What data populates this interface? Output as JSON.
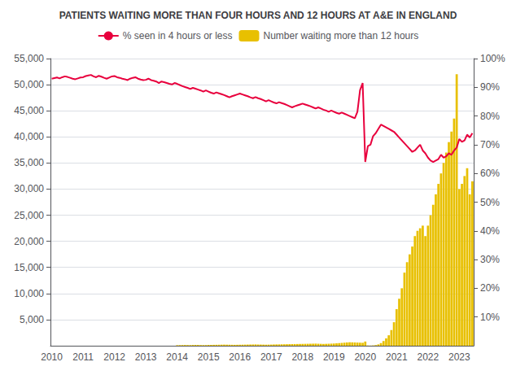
{
  "chart_data": {
    "type": "bar",
    "title": "PATIENTS WAITING MORE THAN FOUR HOURS AND 12 HOURS AT A&E IN ENGLAND",
    "categories": [
      "2010",
      null,
      null,
      null,
      null,
      null,
      null,
      null,
      null,
      null,
      null,
      null,
      "2011",
      null,
      null,
      null,
      null,
      null,
      null,
      null,
      null,
      null,
      null,
      null,
      "2012",
      null,
      null,
      null,
      null,
      null,
      null,
      null,
      null,
      null,
      null,
      null,
      "2013",
      null,
      null,
      null,
      null,
      null,
      null,
      null,
      null,
      null,
      null,
      null,
      "2014",
      null,
      null,
      null,
      null,
      null,
      null,
      null,
      null,
      null,
      null,
      null,
      "2015",
      null,
      null,
      null,
      null,
      null,
      null,
      null,
      null,
      null,
      null,
      null,
      "2016",
      null,
      null,
      null,
      null,
      null,
      null,
      null,
      null,
      null,
      null,
      null,
      "2017",
      null,
      null,
      null,
      null,
      null,
      null,
      null,
      null,
      null,
      null,
      null,
      "2018",
      null,
      null,
      null,
      null,
      null,
      null,
      null,
      null,
      null,
      null,
      null,
      "2019",
      null,
      null,
      null,
      null,
      null,
      null,
      null,
      null,
      null,
      null,
      null,
      "2020",
      null,
      null,
      null,
      null,
      null,
      null,
      null,
      null,
      null,
      null,
      null,
      "2021",
      null,
      null,
      null,
      null,
      null,
      null,
      null,
      null,
      null,
      null,
      null,
      "2022",
      null,
      null,
      null,
      null,
      null,
      null,
      null,
      null,
      null,
      null,
      null,
      "2023",
      null,
      null,
      null,
      null,
      null
    ],
    "series": [
      {
        "name": "% seen in 4 hours or less",
        "type": "line",
        "color": "#e8003d",
        "axis": "y2",
        "values": [
          93.0,
          93.2,
          93.4,
          93.1,
          93.5,
          93.8,
          93.6,
          93.3,
          93.0,
          92.8,
          93.1,
          93.4,
          93.5,
          93.9,
          94.1,
          94.3,
          93.8,
          93.5,
          94.0,
          93.7,
          93.3,
          93.0,
          93.4,
          93.8,
          93.9,
          93.5,
          93.3,
          93.0,
          92.8,
          92.5,
          93.0,
          93.3,
          93.5,
          93.0,
          92.7,
          92.5,
          92.6,
          93.0,
          92.5,
          92.3,
          92.0,
          91.5,
          92.0,
          91.8,
          91.5,
          91.2,
          91.0,
          91.5,
          91.2,
          90.8,
          90.4,
          90.1,
          89.8,
          89.4,
          89.8,
          89.5,
          89.2,
          88.9,
          88.5,
          88.9,
          88.5,
          88.1,
          87.8,
          88.2,
          87.9,
          87.6,
          87.3,
          86.9,
          86.5,
          86.9,
          87.2,
          87.5,
          87.8,
          87.5,
          87.2,
          86.9,
          86.5,
          86.2,
          86.6,
          86.2,
          85.9,
          85.5,
          85.1,
          85.5,
          85.1,
          84.7,
          84.4,
          84.8,
          84.5,
          84.2,
          83.8,
          83.4,
          83.0,
          83.4,
          83.7,
          84.0,
          84.3,
          84.0,
          83.7,
          83.4,
          83.0,
          82.6,
          83.0,
          82.6,
          82.2,
          81.9,
          81.5,
          81.9,
          81.5,
          81.1,
          80.8,
          81.2,
          80.8,
          80.4,
          80.0,
          79.6,
          79.2,
          81.5,
          89.0,
          91.5,
          64.0,
          69.5,
          70.0,
          73.0,
          74.0,
          75.5,
          77.0,
          76.5,
          76.0,
          75.5,
          75.0,
          74.5,
          73.5,
          72.5,
          71.5,
          70.5,
          69.5,
          68.5,
          67.5,
          68.0,
          69.0,
          70.0,
          68.0,
          67.0,
          65.5,
          64.5,
          64.0,
          64.5,
          65.0,
          66.5,
          65.5,
          66.0,
          67.0,
          66.5,
          68.0,
          69.0,
          72.0,
          71.0,
          71.5,
          73.5,
          72.5,
          74.0
        ]
      },
      {
        "name": "Number waiting more than 12 hours",
        "type": "bar",
        "color": "#e8c000",
        "values": [
          0,
          0,
          0,
          0,
          0,
          0,
          0,
          0,
          0,
          0,
          0,
          0,
          0,
          0,
          0,
          0,
          0,
          0,
          0,
          0,
          0,
          0,
          0,
          0,
          0,
          0,
          0,
          0,
          0,
          0,
          0,
          0,
          0,
          0,
          0,
          0,
          0,
          0,
          0,
          0,
          0,
          0,
          0,
          0,
          0,
          0,
          0,
          0,
          100,
          120,
          130,
          140,
          130,
          120,
          150,
          160,
          150,
          130,
          120,
          130,
          140,
          160,
          170,
          180,
          190,
          200,
          210,
          200,
          190,
          180,
          170,
          180,
          190,
          200,
          210,
          220,
          230,
          240,
          250,
          230,
          220,
          210,
          200,
          210,
          220,
          240,
          250,
          260,
          270,
          280,
          290,
          300,
          310,
          320,
          330,
          340,
          350,
          360,
          370,
          380,
          390,
          400,
          380,
          360,
          340,
          360,
          380,
          400,
          420,
          460,
          500,
          540,
          580,
          620,
          660,
          640,
          620,
          600,
          580,
          560,
          800,
          50,
          30,
          60,
          120,
          250,
          500,
          900,
          1400,
          2000,
          3000,
          4500,
          7000,
          9000,
          11000,
          14000,
          16000,
          17500,
          19000,
          21000,
          22000,
          22500,
          23000,
          21000,
          23000,
          25000,
          27000,
          29000,
          31000,
          33000,
          35000,
          37000,
          39000,
          41000,
          43500,
          52000,
          30000,
          31000,
          32500,
          34000,
          29000,
          31494
        ]
      }
    ],
    "ylim": [
      0,
      55000
    ],
    "yticks": [
      {
        "value": 5000,
        "label": "5,000"
      },
      {
        "value": 10000,
        "label": "10,000"
      },
      {
        "value": 15000,
        "label": "15,000"
      },
      {
        "value": 20000,
        "label": "20,000"
      },
      {
        "value": 25000,
        "label": "25,000"
      },
      {
        "value": 30000,
        "label": "30,000"
      },
      {
        "value": 35000,
        "label": "35,000"
      },
      {
        "value": 40000,
        "label": "40,000"
      },
      {
        "value": 45000,
        "label": "45,000"
      },
      {
        "value": 50000,
        "label": "50,000"
      },
      {
        "value": 55000,
        "label": "55,000"
      }
    ],
    "y2lim": [
      0,
      100
    ],
    "y2ticks": [
      {
        "value": 10,
        "label": "10%"
      },
      {
        "value": 20,
        "label": "20%"
      },
      {
        "value": 30,
        "label": "30%"
      },
      {
        "value": 40,
        "label": "40%"
      },
      {
        "value": 50,
        "label": "50%"
      },
      {
        "value": 60,
        "label": "60%"
      },
      {
        "value": 70,
        "label": "70%"
      },
      {
        "value": 80,
        "label": "80%"
      },
      {
        "value": 90,
        "label": "90%"
      },
      {
        "value": 100,
        "label": "100%"
      }
    ],
    "grid": true,
    "legend": "top"
  }
}
